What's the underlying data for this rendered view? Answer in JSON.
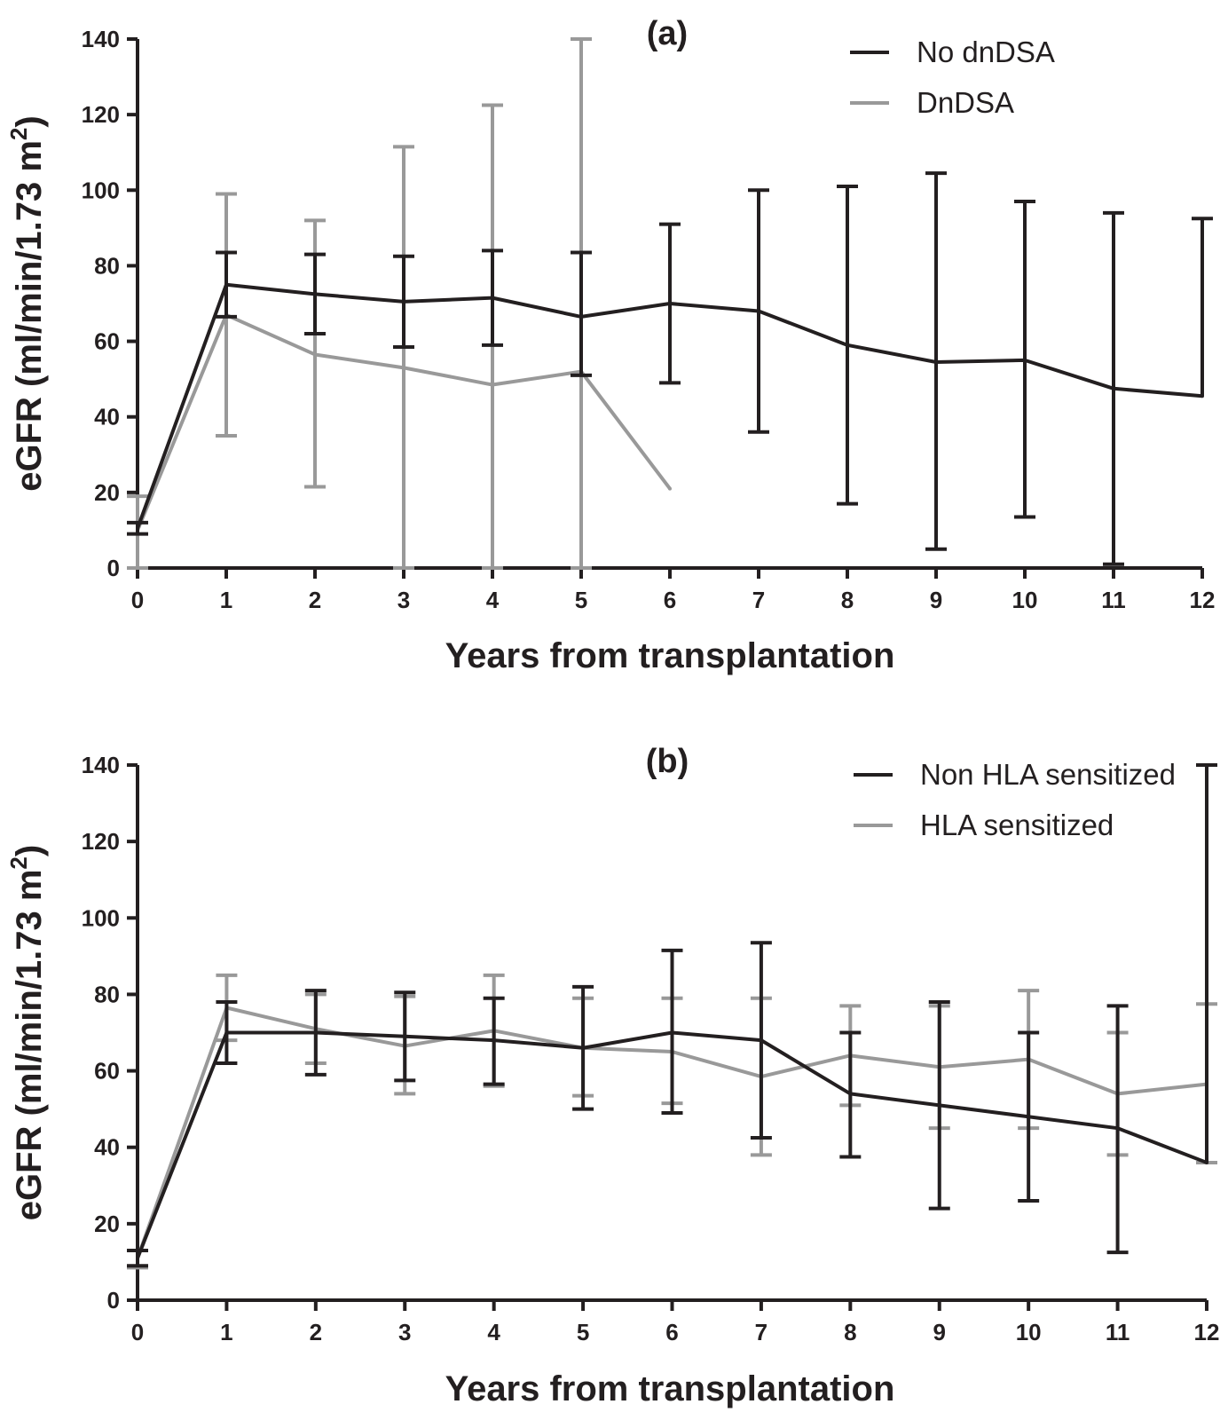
{
  "chart_data": [
    {
      "type": "line",
      "title": "(a)",
      "xlabel": "Years from transplantation",
      "ylabel": "eGFR (ml/min/1.73 m",
      "ylabel_superscript": "2",
      "ylabel_close": ")",
      "xlim": [
        0,
        12
      ],
      "ylim": [
        0,
        140
      ],
      "xticks": [
        0,
        1,
        2,
        3,
        4,
        5,
        6,
        7,
        8,
        9,
        10,
        11,
        12
      ],
      "yticks": [
        0,
        20,
        40,
        60,
        80,
        100,
        120,
        140
      ],
      "grid": false,
      "legend_position": "top-right",
      "series": [
        {
          "name": "No dnDSA",
          "color": "#231f20",
          "x": [
            0,
            1,
            2,
            3,
            4,
            5,
            6,
            7,
            8,
            9,
            10,
            11,
            12
          ],
          "y": [
            10.5,
            75,
            72.5,
            70.5,
            71.5,
            66.5,
            70,
            68,
            59,
            54.5,
            55,
            47.5,
            45.5
          ],
          "error_low": [
            9,
            66.5,
            62,
            58.5,
            59,
            51,
            49,
            36,
            17,
            5,
            13.5,
            1,
            null
          ],
          "error_high": [
            12,
            83.5,
            83,
            82.5,
            84,
            83.5,
            91,
            100,
            101,
            104.5,
            97,
            94,
            92.5
          ]
        },
        {
          "name": "DnDSA",
          "color": "#999999",
          "x": [
            0,
            1,
            2,
            3,
            4,
            5,
            6
          ],
          "y": [
            10,
            67,
            56.5,
            53,
            48.5,
            52,
            21
          ],
          "error_low": [
            0,
            35,
            21.5,
            0,
            0,
            0,
            null
          ],
          "error_high": [
            19,
            99,
            92,
            111.5,
            122.5,
            140,
            null
          ]
        }
      ]
    },
    {
      "type": "line",
      "title": "(b)",
      "xlabel": "Years from transplantation",
      "ylabel": "eGFR (ml/min/1.73 m",
      "ylabel_superscript": "2",
      "ylabel_close": ")",
      "xlim": [
        0,
        12
      ],
      "ylim": [
        0,
        140
      ],
      "xticks": [
        0,
        1,
        2,
        3,
        4,
        5,
        6,
        7,
        8,
        9,
        10,
        11,
        12
      ],
      "yticks": [
        0,
        20,
        40,
        60,
        80,
        100,
        120,
        140
      ],
      "grid": false,
      "legend_position": "top-right",
      "series": [
        {
          "name": "Non HLA sensitized",
          "color": "#231f20",
          "x": [
            0,
            1,
            2,
            3,
            4,
            5,
            6,
            7,
            8,
            9,
            10,
            11,
            12
          ],
          "y": [
            11,
            70,
            70,
            69,
            68,
            66,
            70,
            68,
            54,
            51,
            48,
            45,
            36
          ],
          "error_low": [
            9,
            62,
            59,
            57.5,
            56.5,
            50,
            49,
            42.5,
            37.5,
            24,
            26,
            12.5,
            null
          ],
          "error_high": [
            13,
            78,
            81,
            80.5,
            79,
            82,
            91.5,
            93.5,
            70,
            78,
            70,
            77,
            140
          ]
        },
        {
          "name": "HLA sensitized",
          "color": "#999999",
          "x": [
            0,
            1,
            2,
            3,
            4,
            5,
            6,
            7,
            8,
            9,
            10,
            11,
            12
          ],
          "y": [
            11,
            76.5,
            71,
            66.5,
            70.5,
            66,
            65,
            58.5,
            64,
            61,
            63,
            54,
            56.5
          ],
          "error_low": [
            8.5,
            68,
            62,
            54,
            56,
            53.5,
            51.5,
            38,
            51,
            45,
            45,
            38,
            36
          ],
          "error_high": [
            13,
            85,
            80,
            79.5,
            85,
            79,
            79,
            79,
            77,
            77,
            81,
            70,
            77.5
          ]
        }
      ]
    }
  ]
}
